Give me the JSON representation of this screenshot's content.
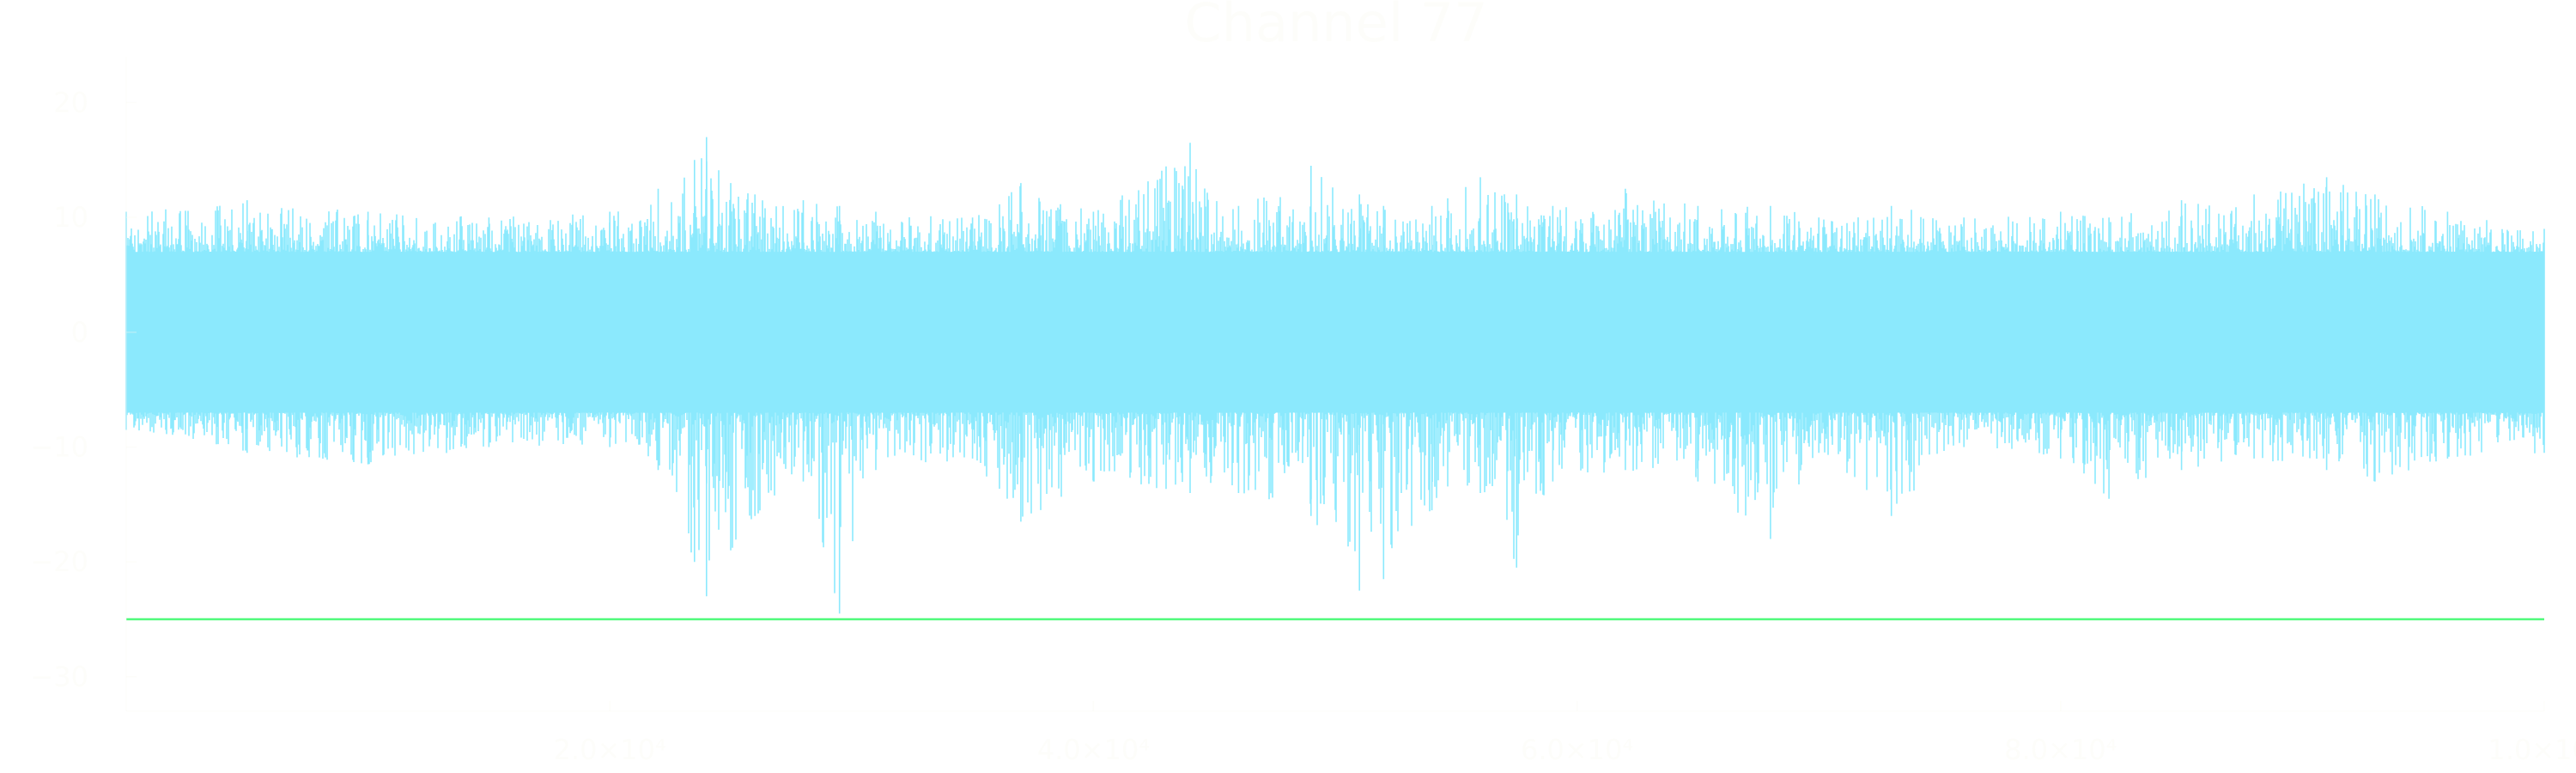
{
  "chart_data": {
    "type": "line",
    "title": "Channel 77",
    "xlabel": "",
    "ylabel": "",
    "xlim": [
      0,
      100000
    ],
    "ylim": [
      -33,
      24
    ],
    "x_ticks": [
      {
        "value": 20000,
        "label": "2.0×10⁴"
      },
      {
        "value": 40000,
        "label": "4.0×10⁴"
      },
      {
        "value": 60000,
        "label": "6.0×10⁴"
      },
      {
        "value": 80000,
        "label": "8.0×10⁴"
      },
      {
        "value": 100000,
        "label": "1.0×10⁵"
      }
    ],
    "y_ticks": [
      {
        "value": 20,
        "label": "20"
      },
      {
        "value": 10,
        "label": "10"
      },
      {
        "value": 0,
        "label": "0"
      },
      {
        "value": -10,
        "label": "−10"
      },
      {
        "value": -20,
        "label": "−20"
      },
      {
        "value": -30,
        "label": "−30"
      }
    ],
    "grid": false,
    "legend": "none",
    "series": [
      {
        "kind": "signal",
        "color": "#8BE9FD",
        "n_samples": 100000,
        "typical_band": [
          -7,
          7
        ],
        "envelope": [
          {
            "x": 0,
            "max": 10.5,
            "min": -8.5
          },
          {
            "x": 5000,
            "max": 11.5,
            "min": -10.5
          },
          {
            "x": 10000,
            "max": 10.5,
            "min": -11.5
          },
          {
            "x": 15000,
            "max": 10,
            "min": -10
          },
          {
            "x": 20000,
            "max": 10.5,
            "min": -10
          },
          {
            "x": 22000,
            "max": 12.5,
            "min": -12
          },
          {
            "x": 23500,
            "max": 15,
            "min": -20
          },
          {
            "x": 24000,
            "max": 17,
            "min": -23
          },
          {
            "x": 25000,
            "max": 13,
            "min": -19
          },
          {
            "x": 26000,
            "max": 12,
            "min": -16
          },
          {
            "x": 28000,
            "max": 11.5,
            "min": -13
          },
          {
            "x": 29500,
            "max": 11,
            "min": -24.5
          },
          {
            "x": 31000,
            "max": 10.5,
            "min": -12
          },
          {
            "x": 35000,
            "max": 10,
            "min": -11
          },
          {
            "x": 37000,
            "max": 13,
            "min": -16.5
          },
          {
            "x": 40000,
            "max": 10.5,
            "min": -13
          },
          {
            "x": 44000,
            "max": 16.5,
            "min": -14
          },
          {
            "x": 46000,
            "max": 11,
            "min": -14
          },
          {
            "x": 49000,
            "max": 14.5,
            "min": -16
          },
          {
            "x": 51000,
            "max": 12,
            "min": -22.5
          },
          {
            "x": 52000,
            "max": 11,
            "min": -21.5
          },
          {
            "x": 54000,
            "max": 11,
            "min": -15.5
          },
          {
            "x": 56000,
            "max": 13.5,
            "min": -14
          },
          {
            "x": 57500,
            "max": 12,
            "min": -20.5
          },
          {
            "x": 59000,
            "max": 11,
            "min": -13
          },
          {
            "x": 62000,
            "max": 12.5,
            "min": -12
          },
          {
            "x": 65000,
            "max": 11,
            "min": -13
          },
          {
            "x": 68000,
            "max": 11,
            "min": -18
          },
          {
            "x": 70000,
            "max": 10,
            "min": -10.5
          },
          {
            "x": 73000,
            "max": 11,
            "min": -16
          },
          {
            "x": 76000,
            "max": 10,
            "min": -10
          },
          {
            "x": 80000,
            "max": 10.5,
            "min": -11
          },
          {
            "x": 82000,
            "max": 10,
            "min": -14.5
          },
          {
            "x": 85000,
            "max": 11.5,
            "min": -12
          },
          {
            "x": 88000,
            "max": 12,
            "min": -11
          },
          {
            "x": 91000,
            "max": 13.5,
            "min": -12
          },
          {
            "x": 93000,
            "max": 12,
            "min": -13
          },
          {
            "x": 96000,
            "max": 10.5,
            "min": -11
          },
          {
            "x": 100000,
            "max": 9,
            "min": -10.5
          }
        ]
      },
      {
        "kind": "threshold",
        "color": "#50FA7B",
        "y": -25
      }
    ],
    "colors": {
      "title": "#F8F8F2",
      "axis": "#F8F8F2",
      "tick_label": "#F8F8F2",
      "background": "transparent"
    }
  }
}
